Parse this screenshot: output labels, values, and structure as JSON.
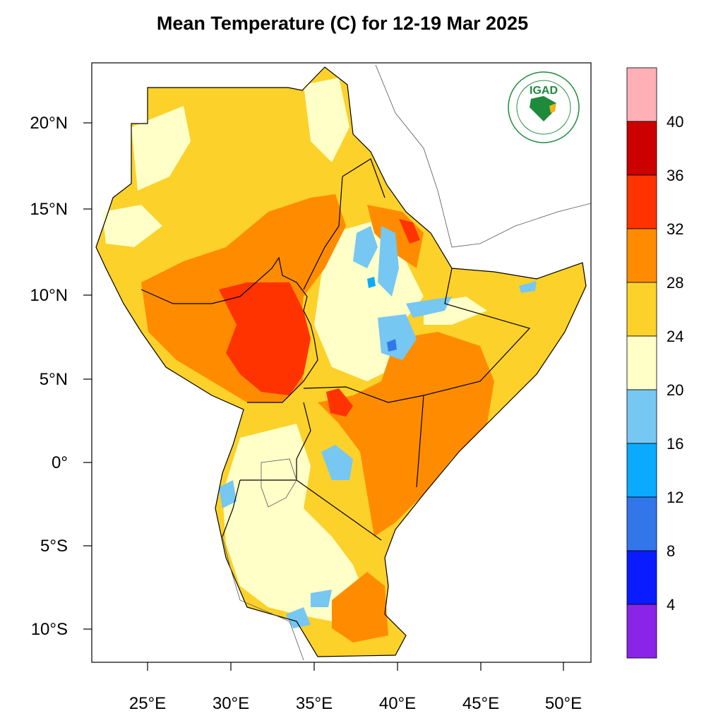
{
  "title": "Mean Temperature (C) for 12-19 Mar 2025",
  "axes": {
    "lat_labels": [
      "20°N",
      "15°N",
      "10°N",
      "5°N",
      "0°",
      "5°S",
      "10°S"
    ],
    "lon_labels": [
      "25°E",
      "30°E",
      "35°E",
      "40°E",
      "45°E",
      "50°E"
    ]
  },
  "colorbar": {
    "labels": [
      "40",
      "36",
      "32",
      "28",
      "24",
      "20",
      "16",
      "12",
      "8",
      "4"
    ],
    "colors": [
      "#ffb0b6",
      "#cc0000",
      "#ff3300",
      "#ff8c00",
      "#fcd12a",
      "#ffffc8",
      "#76c7f2",
      "#0aabff",
      "#3376ea",
      "#0a1cff",
      "#8a25e8"
    ]
  },
  "logo": {
    "name": "IGAD",
    "ring_text": "INTERGOVERNMENTAL AUTHORITY ON DEVELOPMENT"
  }
}
